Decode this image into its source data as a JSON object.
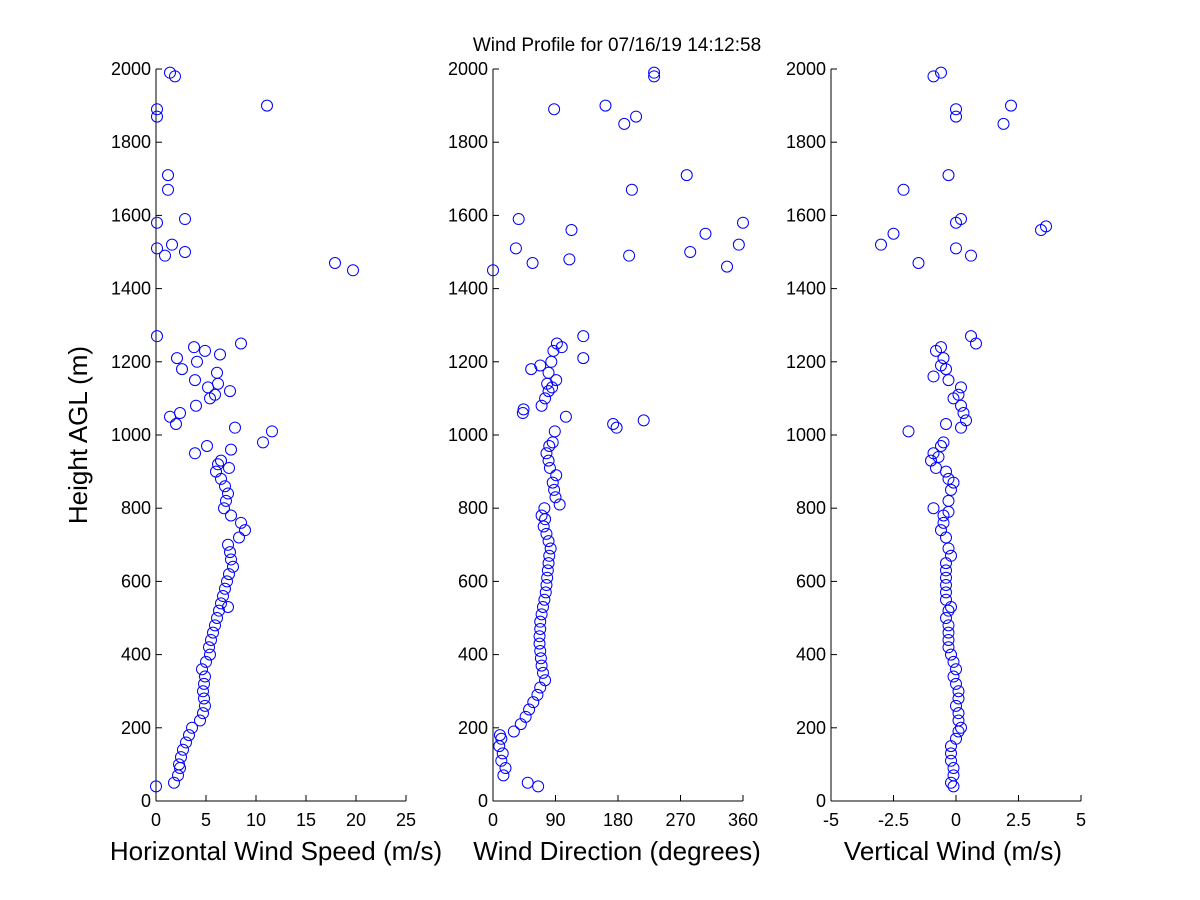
{
  "title": "Wind Profile for  07/16/19 14:12:58",
  "ylabel": "Height AGL (m)",
  "colors": {
    "marker": "#0000ff",
    "axis": "#000000",
    "background": "#ffffff"
  },
  "chart_data": [
    {
      "type": "scatter",
      "xlabel": "Horizontal Wind Speed (m/s)",
      "xlim": [
        0,
        25
      ],
      "xticks": [
        "0",
        "5",
        "10",
        "15",
        "20",
        "25"
      ],
      "ylim": [
        0,
        2000
      ],
      "yticks": [
        "0",
        "200",
        "400",
        "600",
        "800",
        "1000",
        "1200",
        "1400",
        "1600",
        "1800",
        "2000"
      ],
      "points": [
        [
          0,
          40
        ],
        [
          1.8,
          50
        ],
        [
          2.2,
          70
        ],
        [
          2.4,
          90
        ],
        [
          2.3,
          100
        ],
        [
          2.5,
          120
        ],
        [
          2.7,
          140
        ],
        [
          3.0,
          160
        ],
        [
          3.3,
          180
        ],
        [
          3.6,
          200
        ],
        [
          4.4,
          220
        ],
        [
          4.7,
          240
        ],
        [
          4.9,
          260
        ],
        [
          4.8,
          280
        ],
        [
          4.7,
          300
        ],
        [
          4.8,
          320
        ],
        [
          4.9,
          340
        ],
        [
          4.6,
          360
        ],
        [
          5.0,
          380
        ],
        [
          5.4,
          400
        ],
        [
          5.3,
          420
        ],
        [
          5.5,
          440
        ],
        [
          5.7,
          460
        ],
        [
          5.9,
          480
        ],
        [
          6.1,
          500
        ],
        [
          6.3,
          520
        ],
        [
          7.2,
          530
        ],
        [
          6.5,
          540
        ],
        [
          6.7,
          560
        ],
        [
          6.9,
          580
        ],
        [
          7.1,
          600
        ],
        [
          7.3,
          620
        ],
        [
          7.7,
          640
        ],
        [
          7.5,
          660
        ],
        [
          7.4,
          680
        ],
        [
          7.2,
          700
        ],
        [
          8.3,
          720
        ],
        [
          8.9,
          740
        ],
        [
          8.5,
          760
        ],
        [
          7.5,
          780
        ],
        [
          6.8,
          800
        ],
        [
          7.0,
          820
        ],
        [
          7.2,
          840
        ],
        [
          6.9,
          860
        ],
        [
          6.5,
          880
        ],
        [
          6.0,
          900
        ],
        [
          7.3,
          910
        ],
        [
          6.2,
          920
        ],
        [
          6.5,
          930
        ],
        [
          3.9,
          950
        ],
        [
          7.5,
          960
        ],
        [
          5.1,
          970
        ],
        [
          10.7,
          980
        ],
        [
          11.6,
          1010
        ],
        [
          7.9,
          1020
        ],
        [
          2.0,
          1030
        ],
        [
          1.4,
          1050
        ],
        [
          2.4,
          1060
        ],
        [
          4.0,
          1080
        ],
        [
          5.4,
          1100
        ],
        [
          5.9,
          1110
        ],
        [
          7.4,
          1120
        ],
        [
          5.2,
          1130
        ],
        [
          6.2,
          1140
        ],
        [
          3.9,
          1150
        ],
        [
          6.1,
          1170
        ],
        [
          2.6,
          1180
        ],
        [
          4.1,
          1200
        ],
        [
          2.1,
          1210
        ],
        [
          6.4,
          1220
        ],
        [
          4.9,
          1230
        ],
        [
          3.8,
          1240
        ],
        [
          8.5,
          1250
        ],
        [
          0.1,
          1270
        ],
        [
          19.7,
          1450
        ],
        [
          17.9,
          1470
        ],
        [
          0.9,
          1490
        ],
        [
          2.9,
          1500
        ],
        [
          0.1,
          1510
        ],
        [
          1.6,
          1520
        ],
        [
          0.1,
          1580
        ],
        [
          2.9,
          1590
        ],
        [
          1.2,
          1670
        ],
        [
          1.2,
          1710
        ],
        [
          0.1,
          1870
        ],
        [
          0.1,
          1890
        ],
        [
          11.1,
          1900
        ],
        [
          1.9,
          1980
        ],
        [
          1.4,
          1990
        ]
      ]
    },
    {
      "type": "scatter",
      "xlabel": "Wind Direction (degrees)",
      "xlim": [
        0,
        360
      ],
      "xticks": [
        "0",
        "90",
        "180",
        "270",
        "360"
      ],
      "ylim": [
        0,
        2000
      ],
      "yticks": [
        "0",
        "200",
        "400",
        "600",
        "800",
        "1000",
        "1200",
        "1400",
        "1600",
        "1800",
        "2000"
      ],
      "points": [
        [
          65,
          40
        ],
        [
          50,
          50
        ],
        [
          15,
          70
        ],
        [
          18,
          90
        ],
        [
          12,
          110
        ],
        [
          14,
          130
        ],
        [
          9,
          150
        ],
        [
          12,
          170
        ],
        [
          10,
          180
        ],
        [
          30,
          190
        ],
        [
          40,
          210
        ],
        [
          47,
          230
        ],
        [
          52,
          250
        ],
        [
          58,
          270
        ],
        [
          64,
          290
        ],
        [
          68,
          310
        ],
        [
          75,
          330
        ],
        [
          72,
          350
        ],
        [
          70,
          370
        ],
        [
          69,
          390
        ],
        [
          68,
          410
        ],
        [
          67,
          430
        ],
        [
          67,
          450
        ],
        [
          68,
          470
        ],
        [
          68,
          490
        ],
        [
          70,
          510
        ],
        [
          72,
          530
        ],
        [
          74,
          550
        ],
        [
          76,
          570
        ],
        [
          77,
          590
        ],
        [
          78,
          610
        ],
        [
          79,
          630
        ],
        [
          80,
          650
        ],
        [
          81,
          670
        ],
        [
          83,
          690
        ],
        [
          80,
          710
        ],
        [
          77,
          730
        ],
        [
          73,
          750
        ],
        [
          75,
          770
        ],
        [
          70,
          780
        ],
        [
          74,
          800
        ],
        [
          96,
          810
        ],
        [
          90,
          830
        ],
        [
          88,
          850
        ],
        [
          86,
          870
        ],
        [
          91,
          890
        ],
        [
          82,
          910
        ],
        [
          80,
          930
        ],
        [
          77,
          950
        ],
        [
          81,
          970
        ],
        [
          86,
          980
        ],
        [
          89,
          1010
        ],
        [
          217,
          1040
        ],
        [
          178,
          1020
        ],
        [
          173,
          1030
        ],
        [
          105,
          1050
        ],
        [
          43,
          1060
        ],
        [
          44,
          1070
        ],
        [
          70,
          1080
        ],
        [
          75,
          1100
        ],
        [
          80,
          1120
        ],
        [
          85,
          1130
        ],
        [
          78,
          1140
        ],
        [
          91,
          1150
        ],
        [
          80,
          1170
        ],
        [
          55,
          1180
        ],
        [
          68,
          1190
        ],
        [
          84,
          1200
        ],
        [
          130,
          1210
        ],
        [
          87,
          1230
        ],
        [
          99,
          1240
        ],
        [
          92,
          1250
        ],
        [
          130,
          1270
        ],
        [
          0,
          1450
        ],
        [
          337,
          1460
        ],
        [
          57,
          1470
        ],
        [
          110,
          1480
        ],
        [
          196,
          1490
        ],
        [
          284,
          1500
        ],
        [
          33,
          1510
        ],
        [
          354,
          1520
        ],
        [
          306,
          1550
        ],
        [
          113,
          1560
        ],
        [
          360,
          1580
        ],
        [
          37,
          1590
        ],
        [
          200,
          1670
        ],
        [
          279,
          1710
        ],
        [
          189,
          1850
        ],
        [
          206,
          1870
        ],
        [
          88,
          1890
        ],
        [
          162,
          1900
        ],
        [
          232,
          1980
        ],
        [
          232,
          1990
        ]
      ]
    },
    {
      "type": "scatter",
      "xlabel": "Vertical Wind (m/s)",
      "xlim": [
        -5,
        5
      ],
      "xticks": [
        "-5",
        "-2.5",
        "0",
        "2.5",
        "5"
      ],
      "ylim": [
        0,
        2000
      ],
      "yticks": [
        "0",
        "200",
        "400",
        "600",
        "800",
        "1000",
        "1200",
        "1400",
        "1600",
        "1800",
        "2000"
      ],
      "points": [
        [
          -0.1,
          40
        ],
        [
          -0.2,
          50
        ],
        [
          -0.1,
          70
        ],
        [
          -0.1,
          90
        ],
        [
          -0.2,
          110
        ],
        [
          -0.2,
          130
        ],
        [
          -0.2,
          150
        ],
        [
          0.0,
          170
        ],
        [
          0.1,
          190
        ],
        [
          0.2,
          200
        ],
        [
          0.1,
          220
        ],
        [
          0.1,
          240
        ],
        [
          0.0,
          260
        ],
        [
          0.1,
          280
        ],
        [
          0.1,
          300
        ],
        [
          0.0,
          320
        ],
        [
          -0.1,
          340
        ],
        [
          0.0,
          360
        ],
        [
          -0.1,
          380
        ],
        [
          -0.2,
          400
        ],
        [
          -0.3,
          420
        ],
        [
          -0.3,
          440
        ],
        [
          -0.3,
          460
        ],
        [
          -0.3,
          480
        ],
        [
          -0.4,
          500
        ],
        [
          -0.3,
          520
        ],
        [
          -0.2,
          530
        ],
        [
          -0.4,
          550
        ],
        [
          -0.4,
          570
        ],
        [
          -0.4,
          590
        ],
        [
          -0.4,
          610
        ],
        [
          -0.4,
          630
        ],
        [
          -0.4,
          650
        ],
        [
          -0.2,
          670
        ],
        [
          -0.3,
          690
        ],
        [
          -0.4,
          720
        ],
        [
          -0.6,
          740
        ],
        [
          -0.5,
          760
        ],
        [
          -0.5,
          780
        ],
        [
          -0.3,
          790
        ],
        [
          -0.9,
          800
        ],
        [
          -0.3,
          820
        ],
        [
          -0.2,
          850
        ],
        [
          -0.1,
          870
        ],
        [
          -0.3,
          880
        ],
        [
          -0.4,
          900
        ],
        [
          -0.8,
          910
        ],
        [
          -1.0,
          930
        ],
        [
          -0.7,
          940
        ],
        [
          -0.9,
          950
        ],
        [
          -0.6,
          970
        ],
        [
          -0.5,
          980
        ],
        [
          -1.9,
          1010
        ],
        [
          0.2,
          1020
        ],
        [
          -0.4,
          1030
        ],
        [
          0.4,
          1040
        ],
        [
          0.3,
          1060
        ],
        [
          0.2,
          1080
        ],
        [
          -0.1,
          1100
        ],
        [
          0.1,
          1110
        ],
        [
          0.2,
          1130
        ],
        [
          -0.3,
          1150
        ],
        [
          -0.9,
          1160
        ],
        [
          -0.4,
          1180
        ],
        [
          -0.6,
          1190
        ],
        [
          -0.5,
          1210
        ],
        [
          -0.8,
          1230
        ],
        [
          -0.6,
          1240
        ],
        [
          0.8,
          1250
        ],
        [
          0.6,
          1270
        ],
        [
          -1.5,
          1470
        ],
        [
          0.6,
          1490
        ],
        [
          0.0,
          1510
        ],
        [
          -3.0,
          1520
        ],
        [
          -2.5,
          1550
        ],
        [
          3.4,
          1560
        ],
        [
          3.6,
          1570
        ],
        [
          0.0,
          1580
        ],
        [
          0.2,
          1590
        ],
        [
          -2.1,
          1670
        ],
        [
          -0.3,
          1710
        ],
        [
          1.9,
          1850
        ],
        [
          0.0,
          1870
        ],
        [
          0.0,
          1890
        ],
        [
          2.2,
          1900
        ],
        [
          -0.9,
          1980
        ],
        [
          -0.6,
          1990
        ]
      ]
    }
  ]
}
